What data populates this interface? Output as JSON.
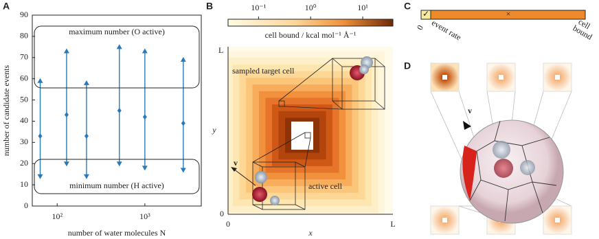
{
  "chart_data": {
    "type": "range",
    "panel_label": "A",
    "x_label": "number of water molecules N",
    "y_label": "number of candidate events",
    "x": [
      64,
      128,
      216,
      512,
      1000,
      2744
    ],
    "series": [
      {
        "color": "#2a7ab9",
        "values": [
          59,
          73,
          58,
          75,
          73,
          69
        ]
      },
      {
        "color": "#2a7ab9",
        "values": [
          33,
          43,
          33,
          45,
          42,
          39
        ]
      },
      {
        "color": "#2a7ab9",
        "values": [
          14,
          20,
          14,
          20,
          18,
          17
        ]
      }
    ],
    "xscale": "log",
    "xlim": [
      52,
      4400
    ],
    "xticks": [
      {
        "value": 100,
        "label": "10²"
      },
      {
        "value": 1000,
        "label": "10³"
      }
    ],
    "ylim": [
      0,
      90
    ],
    "yticks": [
      0,
      10,
      20,
      30,
      40,
      50,
      60,
      70,
      80,
      90
    ],
    "annotations": [
      "maximum number (O active)",
      "minimum number (H active)"
    ]
  },
  "panel_b": {
    "label": "B",
    "colorbar_label": "cell bound / kcal mol⁻¹ Å⁻¹",
    "colorbar_scale": "log",
    "colorbar_lim": [
      0.026,
      38
    ],
    "colorbar_ticks": [
      {
        "value": 0.1,
        "label": "10⁻¹"
      },
      {
        "value": 1,
        "label": "10⁰"
      },
      {
        "value": 10,
        "label": "10¹"
      }
    ],
    "x_label": "x",
    "y_label": "y",
    "x_ticks": [
      "0",
      "L"
    ],
    "y_ticks": [
      "0",
      "L"
    ],
    "target_label": "sampled target cell",
    "active_label": "active cell",
    "velocity_label": "v"
  },
  "panel_c": {
    "label": "C",
    "check": "✓",
    "cross": "×",
    "zero": "0",
    "event_rate": "event rate",
    "cell_bound": [
      "cell",
      "bound"
    ]
  },
  "panel_d": {
    "label": "D",
    "velocity_label": "v"
  }
}
